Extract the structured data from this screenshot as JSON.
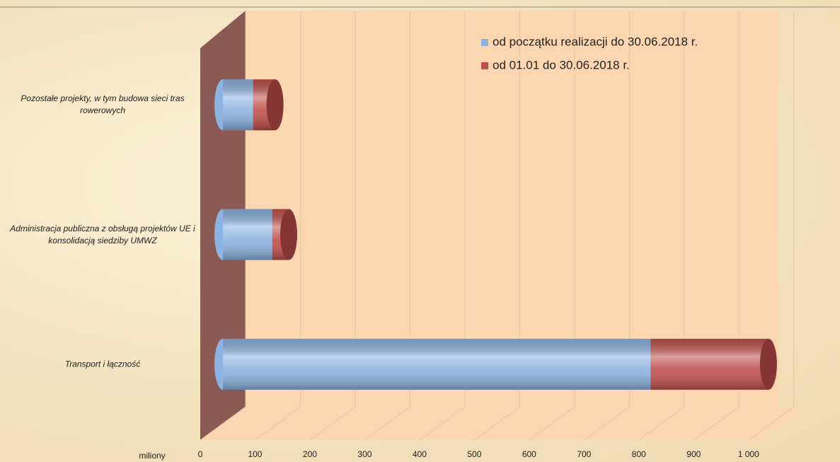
{
  "chart_data": {
    "type": "bar3d_stacked_horizontal",
    "categories": [
      "Pozostałe projekty, w tym budowa sieci tras rowerowych",
      "Administracja publiczna z obsługą projektów UE i konsolidacją siedziby UMWZ",
      "Transport i łączność"
    ],
    "series": [
      {
        "name": "od początku realizacji do 30.06.2018 r.",
        "color": "#8db3e2",
        "values": [
          55,
          90,
          780
        ]
      },
      {
        "name": "od 01.01 do 30.06.2018 r.",
        "color": "#c0504d",
        "values": [
          40,
          30,
          215
        ]
      }
    ],
    "xlabel": "miliony",
    "xlim": [
      0,
      1030
    ],
    "xticks": [
      0,
      100,
      200,
      300,
      400,
      500,
      600,
      700,
      800,
      900,
      {
        "value": 1000,
        "label": "1 000"
      }
    ],
    "grid": true
  }
}
